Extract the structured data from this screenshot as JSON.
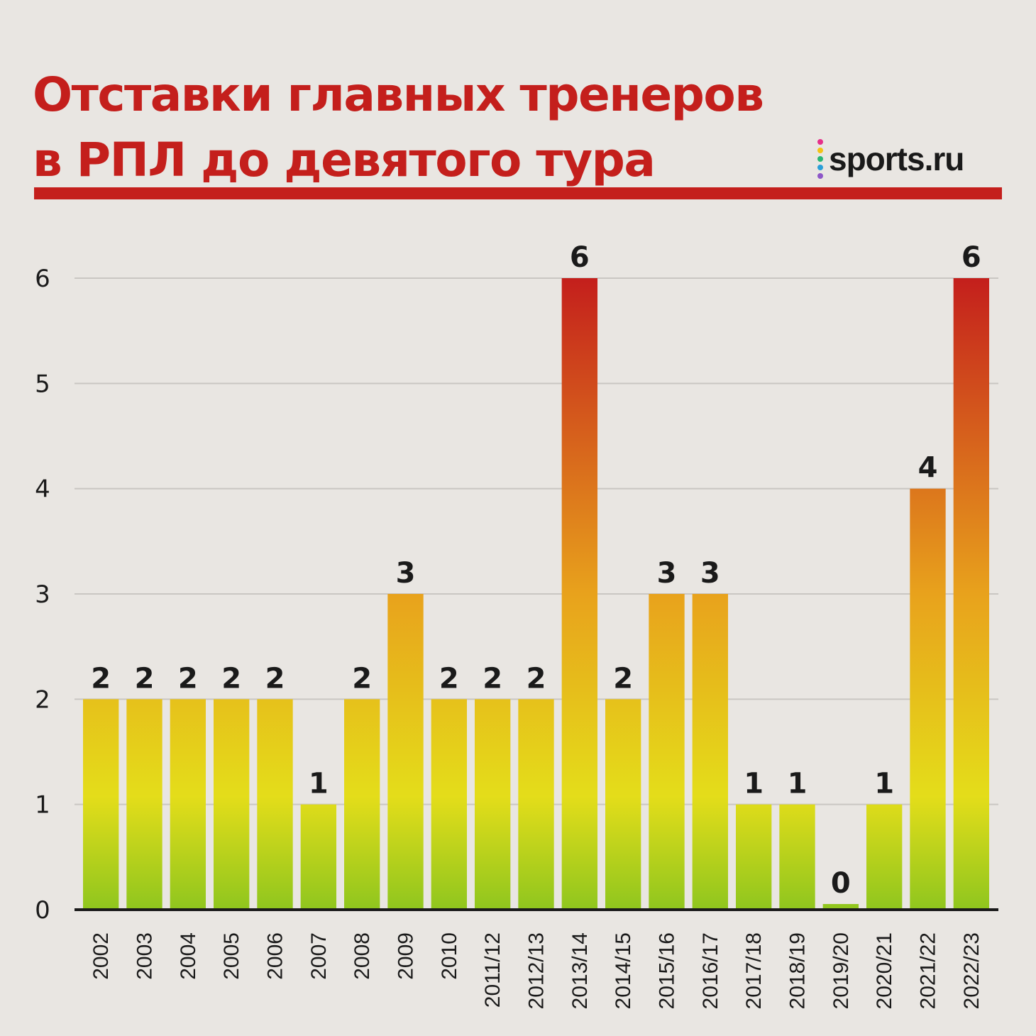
{
  "header": {
    "title_line1": "Отставки главных тренеров",
    "title_line2": "в РПЛ до девятого тура",
    "logo_text": "sports.ru",
    "logo_dot_colors": [
      "#e6308a",
      "#f3c316",
      "#2bb673",
      "#2a9fd8",
      "#8e57c8"
    ]
  },
  "colors": {
    "title": "#c41f1c",
    "bar_top_high": "#c41f1c",
    "bar_mid": "#e8a21c",
    "bar_low": "#e4dd1a",
    "bar_bottom": "#8fc61e",
    "gridline": "#c9c6c2"
  },
  "chart_data": {
    "type": "bar",
    "title": "Отставки главных тренеров в РПЛ до девятого тура",
    "xlabel": "",
    "ylabel": "",
    "ylim": [
      0,
      6
    ],
    "yticks": [
      "0",
      "1",
      "2",
      "3",
      "4",
      "5",
      "6"
    ],
    "grid": true,
    "categories": [
      "2002",
      "2003",
      "2004",
      "2005",
      "2006",
      "2007",
      "2008",
      "2009",
      "2010",
      "2011/12",
      "2012/13",
      "2013/14",
      "2014/15",
      "2015/16",
      "2016/17",
      "2017/18",
      "2018/19",
      "2019/20",
      "2020/21",
      "2021/22",
      "2022/23"
    ],
    "values": [
      2,
      2,
      2,
      2,
      2,
      1,
      2,
      3,
      2,
      2,
      2,
      6,
      2,
      3,
      3,
      1,
      1,
      0,
      1,
      4,
      6
    ],
    "value_labels": [
      "2",
      "2",
      "2",
      "2",
      "2",
      "1",
      "2",
      "3",
      "2",
      "2",
      "2",
      "6",
      "2",
      "3",
      "3",
      "1",
      "1",
      "0",
      "1",
      "4",
      "6"
    ]
  }
}
